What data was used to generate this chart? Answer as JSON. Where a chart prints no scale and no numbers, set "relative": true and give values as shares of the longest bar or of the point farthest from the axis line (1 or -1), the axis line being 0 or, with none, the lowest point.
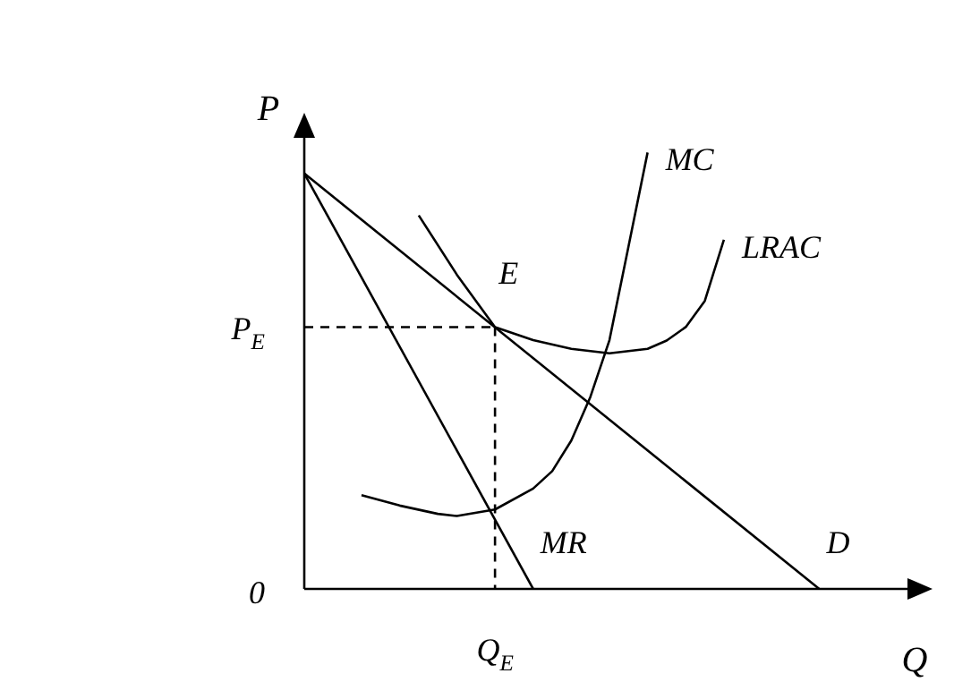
{
  "chart_data": {
    "type": "line",
    "relative": true,
    "xlabel": "Q",
    "ylabel": "P",
    "legend": false,
    "marker": "none",
    "categories": [
      null,
      null,
      null,
      null,
      null,
      null,
      null,
      null,
      null,
      null,
      null,
      null,
      null,
      null,
      null,
      null,
      null,
      null,
      null,
      null,
      null,
      null,
      null,
      null,
      null,
      null,
      null,
      null,
      null,
      null,
      null,
      null,
      null
    ],
    "series": [
      {
        "name": "D",
        "color": "#000000",
        "values": [
          0.952,
          null,
          null,
          null,
          null,
          null,
          null,
          null,
          null,
          null,
          null,
          null,
          null,
          null,
          null,
          null,
          null,
          null,
          null,
          null,
          null,
          null,
          null,
          null,
          null,
          null,
          null,
          0,
          null,
          null,
          null,
          null,
          null
        ]
      },
      {
        "name": "MR",
        "color": "#000000",
        "values": [
          0.952,
          null,
          null,
          null,
          null,
          null,
          null,
          null,
          null,
          null,
          null,
          null,
          0,
          null,
          null,
          null,
          null,
          null,
          null,
          null,
          null,
          null,
          null,
          null,
          null,
          null,
          null,
          null,
          null,
          null,
          null,
          null,
          null
        ]
      },
      {
        "name": "MC",
        "color": "#000000",
        "values": [
          null,
          null,
          null,
          0.215,
          null,
          0.191,
          null,
          0.172,
          0.167,
          null,
          0.182,
          null,
          0.23,
          0.27,
          0.34,
          0.44,
          0.57,
          0.785,
          1,
          null,
          null,
          null,
          null,
          null,
          null,
          null,
          null,
          null,
          null,
          null,
          null,
          null,
          null
        ]
      },
      {
        "name": "LRAC",
        "color": "#000000",
        "values": [
          null,
          null,
          null,
          null,
          null,
          null,
          0.856,
          null,
          0.72,
          null,
          0.6,
          null,
          0.57,
          null,
          0.55,
          null,
          0.54,
          null,
          0.55,
          0.569,
          0.6,
          0.66,
          0.8,
          null,
          null,
          null,
          null,
          null,
          null,
          null,
          null,
          null,
          null
        ]
      },
      {
        "color": "#000000",
        "line_style": "dashed",
        "values": [
          0.6,
          null,
          null,
          null,
          null,
          null,
          null,
          null,
          null,
          null,
          0.6,
          null,
          null,
          null,
          null,
          null,
          null,
          null,
          null,
          null,
          null,
          null,
          null,
          null,
          null,
          null,
          null,
          null,
          null,
          null,
          null,
          null,
          null
        ]
      }
    ],
    "annotations": [
      "E",
      "P$_{E}$",
      "0",
      "Q$_{E}$"
    ]
  }
}
